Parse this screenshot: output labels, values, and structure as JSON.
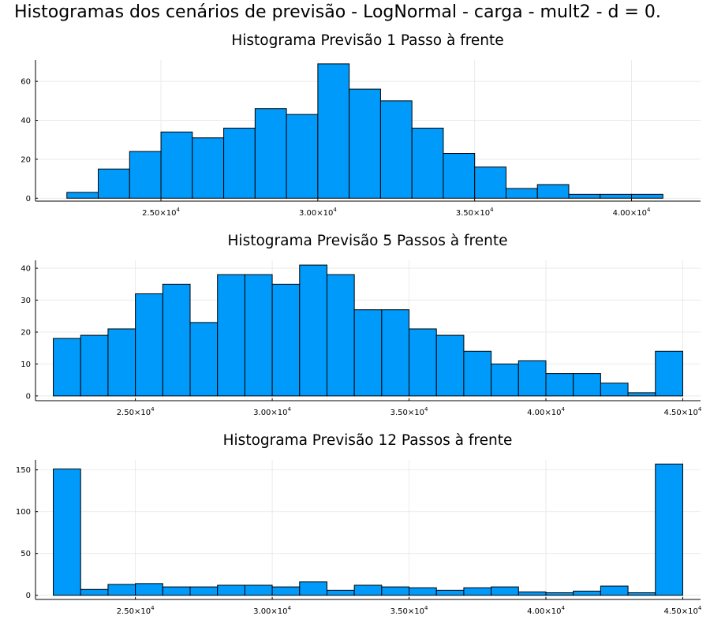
{
  "figure_title": "Histogramas dos cenários de previsão - LogNormal - carga - mult2 - d = 0.",
  "chart_data": [
    {
      "type": "bar",
      "subtype": "histogram",
      "title": "Histograma Previsão 1 Passo à frente",
      "bin_edges": [
        22000,
        23000,
        24000,
        25000,
        26000,
        27000,
        28000,
        29000,
        30000,
        31000,
        32000,
        33000,
        34000,
        35000,
        36000,
        37000,
        38000,
        39000,
        40000,
        41000
      ],
      "values": [
        3,
        15,
        24,
        34,
        31,
        36,
        46,
        43,
        69,
        56,
        50,
        36,
        23,
        16,
        5,
        7,
        2,
        2,
        2
      ],
      "xlim": [
        21000,
        42200
      ],
      "ylim": [
        -1.5,
        71
      ],
      "xticks": [
        {
          "value": 25000,
          "mantissa": "2.50",
          "exp": "4"
        },
        {
          "value": 30000,
          "mantissa": "3.00",
          "exp": "4"
        },
        {
          "value": 35000,
          "mantissa": "3.50",
          "exp": "4"
        },
        {
          "value": 40000,
          "mantissa": "4.00",
          "exp": "4"
        }
      ],
      "yticks": [
        0,
        20,
        40,
        60
      ],
      "grid": true
    },
    {
      "type": "bar",
      "subtype": "histogram",
      "title": "Histograma Previsão 5 Passos à frente",
      "bin_edges": [
        22000,
        23000,
        24000,
        25000,
        26000,
        27000,
        28000,
        29000,
        30000,
        31000,
        32000,
        33000,
        34000,
        35000,
        36000,
        37000,
        38000,
        39000,
        40000,
        41000,
        42000,
        43000,
        44000,
        45000
      ],
      "values": [
        18,
        19,
        21,
        32,
        35,
        23,
        38,
        38,
        35,
        41,
        38,
        27,
        27,
        21,
        19,
        14,
        10,
        11,
        7,
        7,
        4,
        1,
        14
      ],
      "xlim": [
        21350,
        45650
      ],
      "ylim": [
        -1.5,
        42.5
      ],
      "xticks": [
        {
          "value": 25000,
          "mantissa": "2.50",
          "exp": "4"
        },
        {
          "value": 30000,
          "mantissa": "3.00",
          "exp": "4"
        },
        {
          "value": 35000,
          "mantissa": "3.50",
          "exp": "4"
        },
        {
          "value": 40000,
          "mantissa": "4.00",
          "exp": "4"
        },
        {
          "value": 45000,
          "mantissa": "4.50",
          "exp": "4"
        }
      ],
      "yticks": [
        0,
        10,
        20,
        30,
        40
      ],
      "grid": true
    },
    {
      "type": "bar",
      "subtype": "histogram",
      "title": "Histograma Previsão 12 Passos à frente",
      "bin_edges": [
        22000,
        23000,
        24000,
        25000,
        26000,
        27000,
        28000,
        29000,
        30000,
        31000,
        32000,
        33000,
        34000,
        35000,
        36000,
        37000,
        38000,
        39000,
        40000,
        41000,
        42000,
        43000,
        44000,
        45000
      ],
      "values": [
        151,
        7,
        13,
        14,
        10,
        10,
        12,
        12,
        10,
        16,
        6,
        12,
        10,
        9,
        6,
        9,
        10,
        4,
        3,
        5,
        11,
        3,
        157
      ],
      "xlim": [
        21350,
        45650
      ],
      "ylim": [
        -5,
        162
      ],
      "xticks": [
        {
          "value": 25000,
          "mantissa": "2.50",
          "exp": "4"
        },
        {
          "value": 30000,
          "mantissa": "3.00",
          "exp": "4"
        },
        {
          "value": 35000,
          "mantissa": "3.50",
          "exp": "4"
        },
        {
          "value": 40000,
          "mantissa": "4.00",
          "exp": "4"
        },
        {
          "value": 45000,
          "mantissa": "4.50",
          "exp": "4"
        }
      ],
      "yticks": [
        0,
        50,
        100,
        150
      ],
      "grid": true
    }
  ],
  "colors": {
    "bar": "#009AFA",
    "edge": "#000000",
    "grid": "#e6e6e6"
  }
}
